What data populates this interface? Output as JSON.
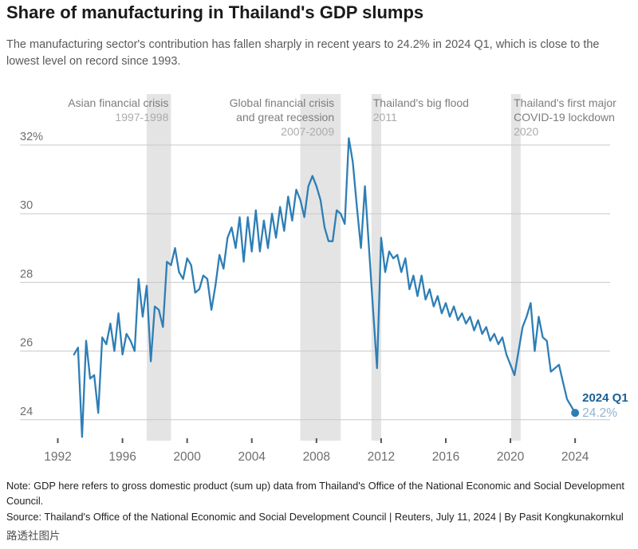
{
  "header": {
    "title": "Share of manufacturing in Thailand's GDP slumps",
    "subtitle": "The manufacturing sector's contribution has fallen sharply in recent years to 24.2% in 2024 Q1, which is close to the lowest level on record since 1993."
  },
  "footer": {
    "note": "Note: GDP here refers to gross domestic product (sum up) data from Thailand's Office of the National Economic and Social Development Council.",
    "source": "Source: Thailand's Office of the National Economic and Social Development Council | Reuters, July 11, 2024 | By Pasit Kongkunakornkul",
    "watermark": "路透社图片"
  },
  "chart_data": {
    "type": "line",
    "series_name": "Manufacturing share of Thailand's GDP, % (quarterly)",
    "frequency": "quarterly",
    "start_year": 1993,
    "start_quarter": 1,
    "values": [
      25.9,
      26.1,
      23.5,
      26.3,
      25.2,
      25.3,
      24.2,
      26.4,
      26.2,
      26.8,
      26.0,
      27.1,
      25.9,
      26.5,
      26.3,
      26.0,
      28.1,
      27.0,
      27.9,
      25.7,
      27.3,
      27.2,
      26.7,
      28.6,
      28.5,
      29.0,
      28.3,
      28.1,
      28.7,
      28.5,
      27.7,
      27.8,
      28.2,
      28.1,
      27.2,
      27.9,
      28.8,
      28.4,
      29.3,
      29.6,
      29.0,
      29.9,
      28.6,
      29.9,
      28.9,
      30.1,
      28.9,
      29.8,
      29.0,
      30.0,
      29.3,
      30.2,
      29.5,
      30.5,
      29.8,
      30.7,
      30.4,
      29.9,
      30.8,
      31.1,
      30.8,
      30.4,
      29.6,
      29.2,
      29.2,
      30.1,
      30.0,
      29.7,
      32.2,
      31.5,
      30.2,
      29.0,
      30.8,
      29.0,
      27.2,
      25.5,
      29.3,
      28.3,
      28.9,
      28.7,
      28.8,
      28.3,
      28.7,
      27.8,
      28.2,
      27.6,
      28.2,
      27.5,
      27.8,
      27.3,
      27.6,
      27.1,
      27.4,
      27.0,
      27.3,
      26.9,
      27.1,
      26.8,
      27.0,
      26.6,
      26.9,
      26.5,
      26.7,
      26.3,
      26.5,
      26.2,
      26.4,
      25.9,
      25.6,
      25.3,
      26.0,
      26.7,
      27.0,
      27.4,
      26.0,
      27.0,
      26.4,
      26.3,
      25.4,
      25.5,
      25.6,
      25.1,
      24.6,
      24.4,
      24.2
    ],
    "x_ticks": [
      1992,
      1996,
      2000,
      2004,
      2008,
      2012,
      2016,
      2020,
      2024
    ],
    "y_ticks": [
      {
        "value": 24,
        "label": "24"
      },
      {
        "value": 26,
        "label": "26"
      },
      {
        "value": 28,
        "label": "28"
      },
      {
        "value": 30,
        "label": "30"
      },
      {
        "value": 32,
        "label": "32%"
      }
    ],
    "xlim": [
      1991.5,
      2025.2
    ],
    "ylim": [
      23.2,
      32.4
    ],
    "grid": true,
    "bands": [
      {
        "from": 1997.5,
        "to": 1999.0
      },
      {
        "from": 2007.0,
        "to": 2009.5
      },
      {
        "from": 2011.4,
        "to": 2012.0
      },
      {
        "from": 2020.04,
        "to": 2020.63
      }
    ],
    "annotations": [
      {
        "lines": [
          "Asian financial crisis"
        ],
        "year": "1997-1998",
        "align": "right",
        "anchor_year": 1998.85
      },
      {
        "lines": [
          "Global financial crisis",
          "and great recession"
        ],
        "year": "2007-2009",
        "align": "right",
        "anchor_year": 2009.1
      },
      {
        "lines": [
          "Thailand's big flood"
        ],
        "year": "2011",
        "align": "left",
        "anchor_year": 2011.5
      },
      {
        "lines": [
          "Thailand's first major",
          "COVID-19 lockdown"
        ],
        "year": "2020",
        "align": "left",
        "anchor_year": 2020.2
      }
    ],
    "end_label": {
      "title": "2024 Q1",
      "value": "24.2%"
    },
    "colors": {
      "line": "#2e7eb5",
      "end_dot": "#2e7eb5",
      "band": "#e4e4e4",
      "grid": "#c8c8c8",
      "axis_text": "#6e6e6e",
      "annotation_text": "#7d7d7d",
      "annotation_year": "#ababab",
      "end_label_title": "#1b6195",
      "end_label_value": "#8fb3cf"
    }
  }
}
